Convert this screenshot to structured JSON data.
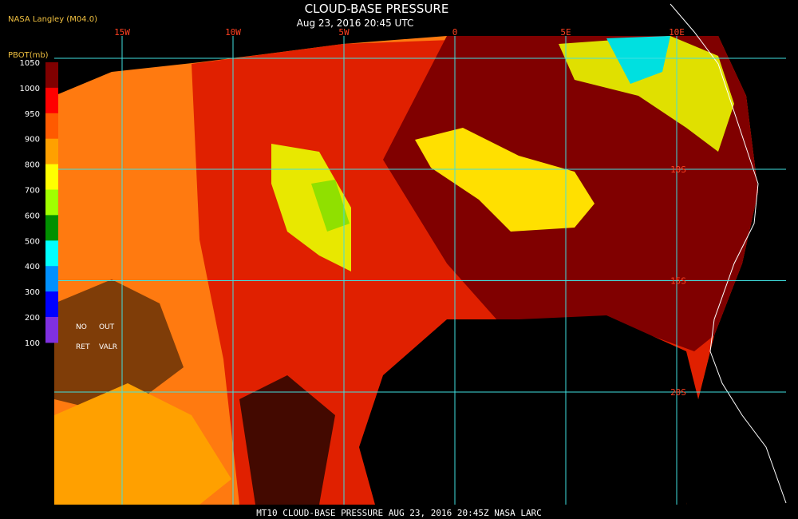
{
  "header": {
    "source": "NASA Langley (M04.0)",
    "title": "CLOUD-BASE PRESSURE",
    "subtitle": "Aug 23, 2016 20:45 UTC"
  },
  "legend": {
    "title": "PBOT(mb)",
    "ticks": [
      1050,
      1000,
      950,
      900,
      800,
      700,
      600,
      500,
      400,
      300,
      200,
      100
    ],
    "colors": [
      "#800000",
      "#ff0000",
      "#ff5a00",
      "#ffa000",
      "#ffff00",
      "#a0ff00",
      "#009000",
      "#00ffff",
      "#0090ff",
      "#0000ff",
      "#8030e0"
    ],
    "notes": [
      "NO",
      "OUT",
      "RET",
      "VALR"
    ]
  },
  "map": {
    "longitudes": [
      "15W",
      "10W",
      "5W",
      "0",
      "5E",
      "10E"
    ],
    "latitudes": [
      "10S",
      "15S",
      "20S"
    ]
  },
  "footer": "MT10   CLOUD-BASE PRESSURE   AUG 23, 2016 20:45Z   NASA LARC"
}
